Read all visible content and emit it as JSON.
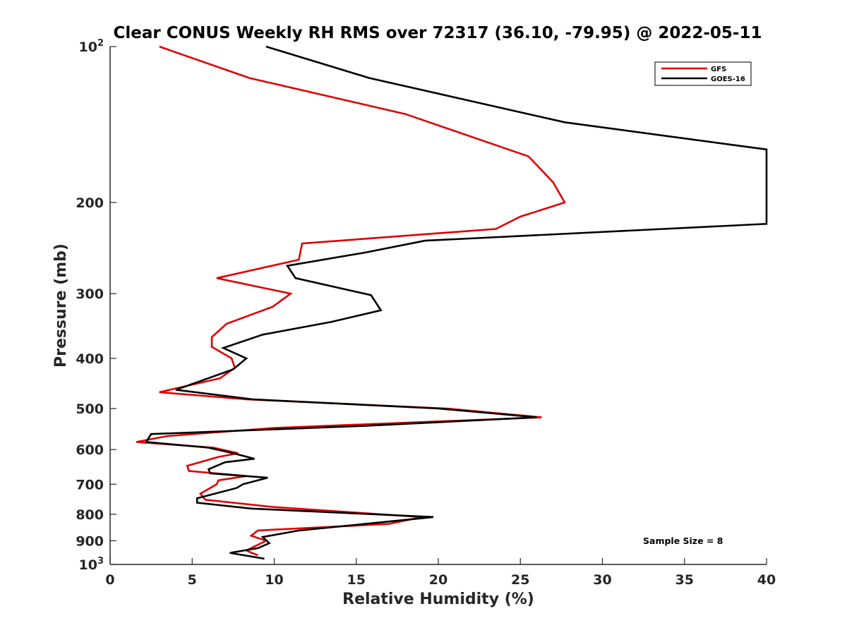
{
  "chart_data": {
    "type": "line",
    "title": "Clear CONUS Weekly RH RMS over 72317 (36.10, -79.95) @ 2022-05-11",
    "xlabel": "Relative Humidity (%)",
    "ylabel": "Pressure (mb)",
    "xlim": [
      0,
      40
    ],
    "ylim": [
      100,
      1000
    ],
    "yscale": "log",
    "y_reversed": true,
    "grid": false,
    "legend_position": "top-right",
    "x_ticks": [
      "0",
      "5",
      "10",
      "15",
      "20",
      "25",
      "30",
      "35",
      "40"
    ],
    "y_ticks": [
      {
        "value": 100,
        "base": "10",
        "exp": "2"
      },
      {
        "value": 200,
        "label": "200"
      },
      {
        "value": 300,
        "label": "300"
      },
      {
        "value": 400,
        "label": "400"
      },
      {
        "value": 500,
        "label": "500"
      },
      {
        "value": 600,
        "label": "600"
      },
      {
        "value": 700,
        "label": "700"
      },
      {
        "value": 800,
        "label": "800"
      },
      {
        "value": 900,
        "label": "900"
      },
      {
        "value": 1000,
        "base": "10",
        "exp": "3"
      }
    ],
    "annotation": "Sample Size = 8",
    "series": [
      {
        "name": "GFS",
        "color": "#e00000",
        "points": [
          [
            3.0,
            100
          ],
          [
            8.5,
            115
          ],
          [
            18.0,
            135
          ],
          [
            25.5,
            163
          ],
          [
            27.0,
            183
          ],
          [
            27.7,
            200
          ],
          [
            25.0,
            213
          ],
          [
            23.5,
            225
          ],
          [
            11.7,
            240
          ],
          [
            11.5,
            258
          ],
          [
            6.5,
            280
          ],
          [
            11.0,
            300
          ],
          [
            9.9,
            318
          ],
          [
            7.1,
            343
          ],
          [
            6.2,
            364
          ],
          [
            6.2,
            380
          ],
          [
            7.4,
            400
          ],
          [
            7.6,
            417
          ],
          [
            6.7,
            437
          ],
          [
            3.0,
            465
          ],
          [
            8.3,
            480
          ],
          [
            20.5,
            500
          ],
          [
            26.3,
            520
          ],
          [
            10.0,
            545
          ],
          [
            3.5,
            565
          ],
          [
            1.6,
            580
          ],
          [
            6.3,
            595
          ],
          [
            7.8,
            610
          ],
          [
            6.6,
            620
          ],
          [
            4.7,
            645
          ],
          [
            4.8,
            660
          ],
          [
            8.3,
            675
          ],
          [
            6.6,
            688
          ],
          [
            6.5,
            700
          ],
          [
            5.5,
            730
          ],
          [
            5.8,
            750
          ],
          [
            10.0,
            775
          ],
          [
            19.0,
            810
          ],
          [
            17.0,
            835
          ],
          [
            9.0,
            860
          ],
          [
            8.6,
            880
          ],
          [
            9.5,
            900
          ],
          [
            8.3,
            940
          ],
          [
            9.0,
            960
          ]
        ]
      },
      {
        "name": "GOES-16",
        "color": "#000000",
        "points": [
          [
            9.5,
            100
          ],
          [
            15.8,
            115
          ],
          [
            27.7,
            140
          ],
          [
            40.0,
            158
          ],
          [
            40.0,
            220
          ],
          [
            19.2,
            237
          ],
          [
            15.5,
            250
          ],
          [
            10.8,
            265
          ],
          [
            11.3,
            280
          ],
          [
            15.9,
            302
          ],
          [
            16.5,
            323
          ],
          [
            13.5,
            340
          ],
          [
            9.3,
            360
          ],
          [
            6.9,
            382
          ],
          [
            8.3,
            400
          ],
          [
            7.5,
            420
          ],
          [
            4.0,
            460
          ],
          [
            8.7,
            480
          ],
          [
            20.0,
            500
          ],
          [
            26.0,
            520
          ],
          [
            15.5,
            540
          ],
          [
            2.5,
            560
          ],
          [
            2.2,
            580
          ],
          [
            6.0,
            595
          ],
          [
            7.5,
            610
          ],
          [
            8.8,
            625
          ],
          [
            7.0,
            635
          ],
          [
            6.0,
            655
          ],
          [
            6.1,
            667
          ],
          [
            9.6,
            680
          ],
          [
            8.1,
            700
          ],
          [
            7.7,
            712
          ],
          [
            5.3,
            745
          ],
          [
            5.3,
            760
          ],
          [
            8.6,
            780
          ],
          [
            19.7,
            810
          ],
          [
            17.2,
            825
          ],
          [
            11.5,
            860
          ],
          [
            9.3,
            885
          ],
          [
            9.7,
            910
          ],
          [
            9.0,
            930
          ],
          [
            7.3,
            950
          ],
          [
            9.4,
            975
          ]
        ]
      }
    ]
  }
}
